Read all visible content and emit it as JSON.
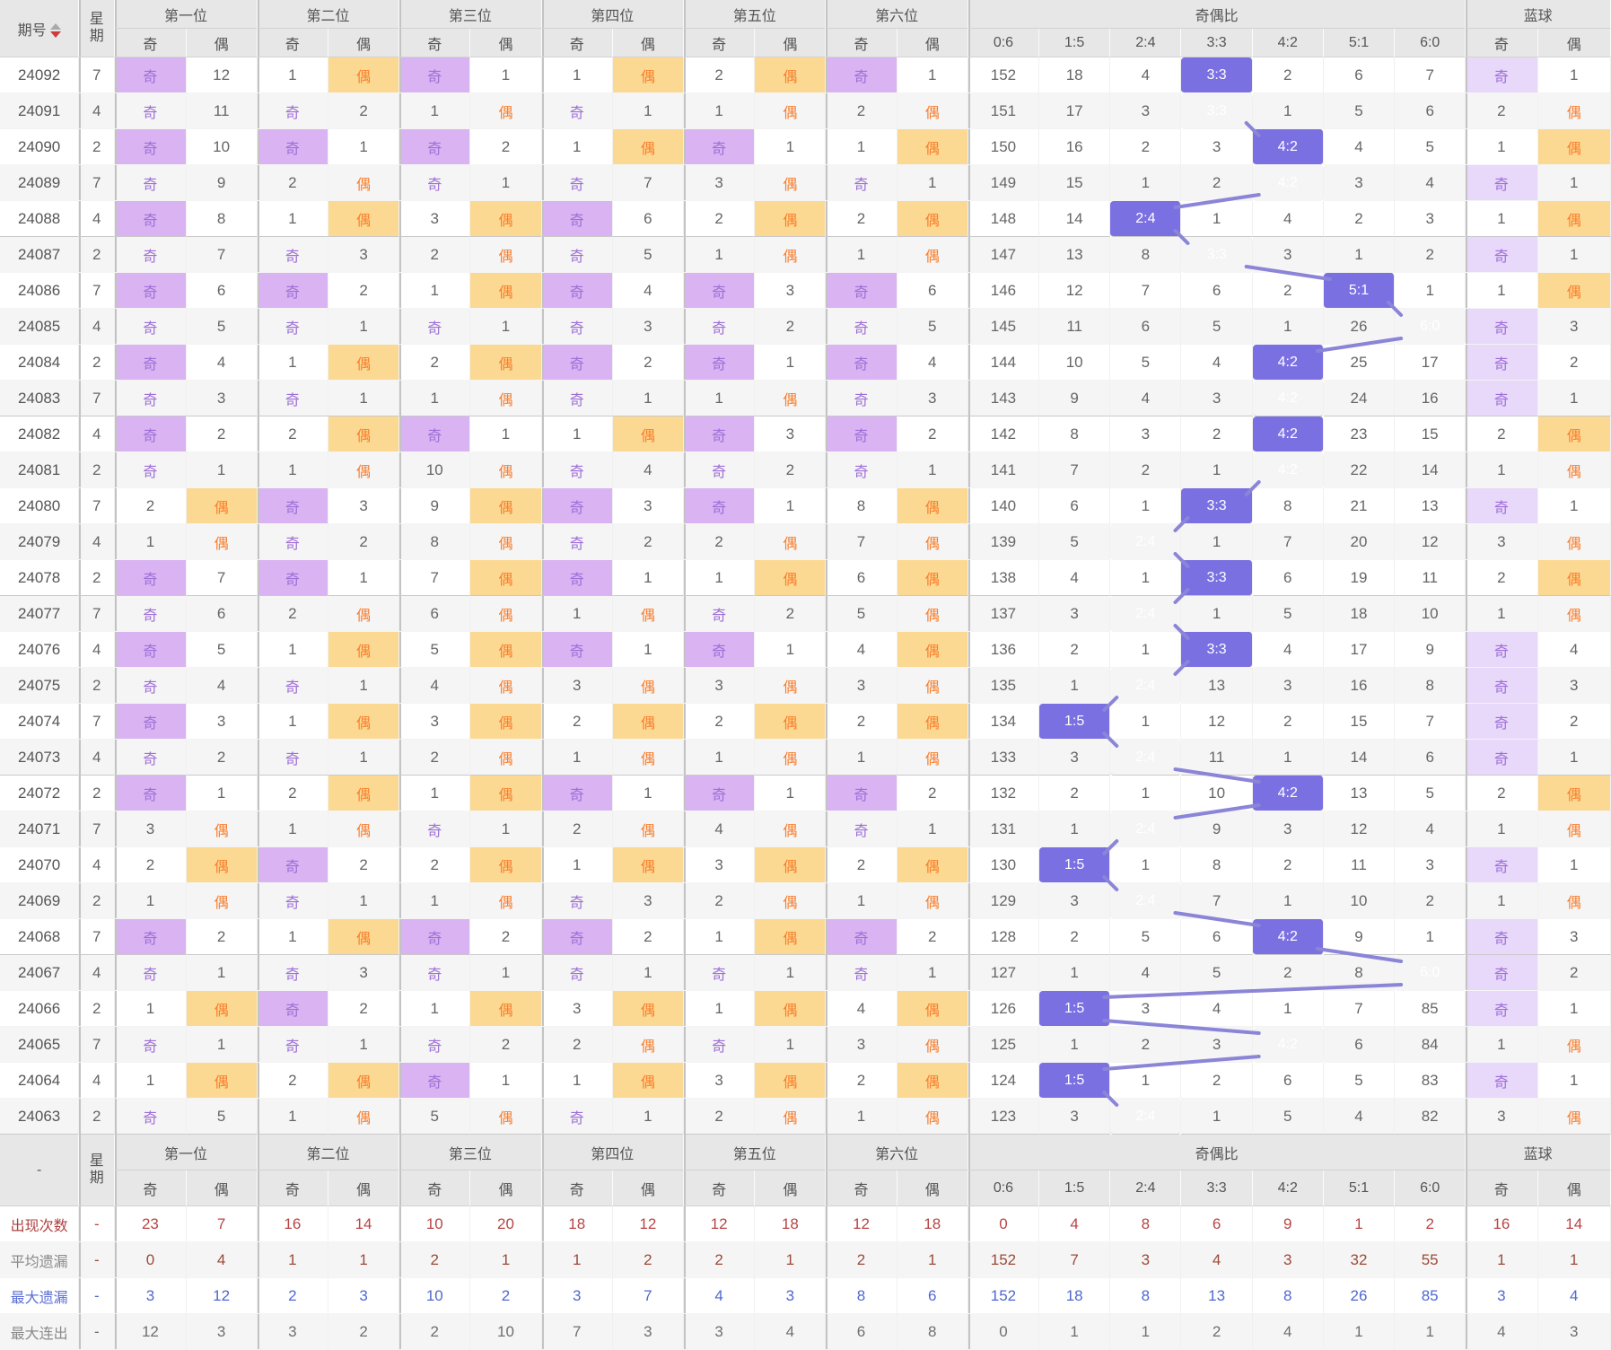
{
  "table": {
    "header": {
      "issue": "期号",
      "week_chars": [
        "星",
        "期"
      ],
      "positions": [
        "第一位",
        "第二位",
        "第三位",
        "第四位",
        "第五位",
        "第六位"
      ],
      "odd": "奇",
      "even": "偶",
      "ratio_title": "奇偶比",
      "ratio_cols": [
        "0:6",
        "1:5",
        "2:4",
        "3:3",
        "4:2",
        "5:1",
        "6:0"
      ],
      "blue_title": "蓝球",
      "summary_corner": "-"
    }
  },
  "chart_data": {
    "type": "table",
    "columns": [
      "期号",
      "星期",
      "第一位奇",
      "第一位偶",
      "第二位奇",
      "第二位偶",
      "第三位奇",
      "第三位偶",
      "第四位奇",
      "第四位偶",
      "第五位奇",
      "第五位偶",
      "第六位奇",
      "第六位偶",
      "0:6",
      "1:5",
      "2:4",
      "3:3",
      "4:2",
      "5:1",
      "6:0",
      "蓝球奇",
      "蓝球偶"
    ],
    "rows": [
      [
        "24092",
        "7",
        "奇",
        "12",
        "1",
        "偶",
        "奇",
        "1",
        "1",
        "偶",
        "2",
        "偶",
        "奇",
        "1",
        "152",
        "18",
        "4",
        "3:3",
        "2",
        "6",
        "7",
        "奇",
        "1"
      ],
      [
        "24091",
        "4",
        "奇",
        "11",
        "奇",
        "2",
        "1",
        "偶",
        "奇",
        "1",
        "1",
        "偶",
        "2",
        "偶",
        "151",
        "17",
        "3",
        "3:3",
        "1",
        "5",
        "6",
        "2",
        "偶"
      ],
      [
        "24090",
        "2",
        "奇",
        "10",
        "奇",
        "1",
        "奇",
        "2",
        "1",
        "偶",
        "奇",
        "1",
        "1",
        "偶",
        "150",
        "16",
        "2",
        "3",
        "4:2",
        "4",
        "5",
        "1",
        "偶"
      ],
      [
        "24089",
        "7",
        "奇",
        "9",
        "2",
        "偶",
        "奇",
        "1",
        "奇",
        "7",
        "3",
        "偶",
        "奇",
        "1",
        "149",
        "15",
        "1",
        "2",
        "4:2",
        "3",
        "4",
        "奇",
        "1"
      ],
      [
        "24088",
        "4",
        "奇",
        "8",
        "1",
        "偶",
        "3",
        "偶",
        "奇",
        "6",
        "2",
        "偶",
        "2",
        "偶",
        "148",
        "14",
        "2:4",
        "1",
        "4",
        "2",
        "3",
        "1",
        "偶"
      ],
      [
        "24087",
        "2",
        "奇",
        "7",
        "奇",
        "3",
        "2",
        "偶",
        "奇",
        "5",
        "1",
        "偶",
        "1",
        "偶",
        "147",
        "13",
        "8",
        "3:3",
        "3",
        "1",
        "2",
        "奇",
        "1"
      ],
      [
        "24086",
        "7",
        "奇",
        "6",
        "奇",
        "2",
        "1",
        "偶",
        "奇",
        "4",
        "奇",
        "3",
        "奇",
        "6",
        "146",
        "12",
        "7",
        "6",
        "2",
        "5:1",
        "1",
        "1",
        "偶"
      ],
      [
        "24085",
        "4",
        "奇",
        "5",
        "奇",
        "1",
        "奇",
        "1",
        "奇",
        "3",
        "奇",
        "2",
        "奇",
        "5",
        "145",
        "11",
        "6",
        "5",
        "1",
        "26",
        "6:0",
        "奇",
        "3"
      ],
      [
        "24084",
        "2",
        "奇",
        "4",
        "1",
        "偶",
        "2",
        "偶",
        "奇",
        "2",
        "奇",
        "1",
        "奇",
        "4",
        "144",
        "10",
        "5",
        "4",
        "4:2",
        "25",
        "17",
        "奇",
        "2"
      ],
      [
        "24083",
        "7",
        "奇",
        "3",
        "奇",
        "1",
        "1",
        "偶",
        "奇",
        "1",
        "1",
        "偶",
        "奇",
        "3",
        "143",
        "9",
        "4",
        "3",
        "4:2",
        "24",
        "16",
        "奇",
        "1"
      ],
      [
        "24082",
        "4",
        "奇",
        "2",
        "2",
        "偶",
        "奇",
        "1",
        "1",
        "偶",
        "奇",
        "3",
        "奇",
        "2",
        "142",
        "8",
        "3",
        "2",
        "4:2",
        "23",
        "15",
        "2",
        "偶"
      ],
      [
        "24081",
        "2",
        "奇",
        "1",
        "1",
        "偶",
        "10",
        "偶",
        "奇",
        "4",
        "奇",
        "2",
        "奇",
        "1",
        "141",
        "7",
        "2",
        "1",
        "4:2",
        "22",
        "14",
        "1",
        "偶"
      ],
      [
        "24080",
        "7",
        "2",
        "偶",
        "奇",
        "3",
        "9",
        "偶",
        "奇",
        "3",
        "奇",
        "1",
        "8",
        "偶",
        "140",
        "6",
        "1",
        "3:3",
        "8",
        "21",
        "13",
        "奇",
        "1"
      ],
      [
        "24079",
        "4",
        "1",
        "偶",
        "奇",
        "2",
        "8",
        "偶",
        "奇",
        "2",
        "2",
        "偶",
        "7",
        "偶",
        "139",
        "5",
        "2:4",
        "1",
        "7",
        "20",
        "12",
        "3",
        "偶"
      ],
      [
        "24078",
        "2",
        "奇",
        "7",
        "奇",
        "1",
        "7",
        "偶",
        "奇",
        "1",
        "1",
        "偶",
        "6",
        "偶",
        "138",
        "4",
        "1",
        "3:3",
        "6",
        "19",
        "11",
        "2",
        "偶"
      ],
      [
        "24077",
        "7",
        "奇",
        "6",
        "2",
        "偶",
        "6",
        "偶",
        "1",
        "偶",
        "奇",
        "2",
        "5",
        "偶",
        "137",
        "3",
        "2:4",
        "1",
        "5",
        "18",
        "10",
        "1",
        "偶"
      ],
      [
        "24076",
        "4",
        "奇",
        "5",
        "1",
        "偶",
        "5",
        "偶",
        "奇",
        "1",
        "奇",
        "1",
        "4",
        "偶",
        "136",
        "2",
        "1",
        "3:3",
        "4",
        "17",
        "9",
        "奇",
        "4"
      ],
      [
        "24075",
        "2",
        "奇",
        "4",
        "奇",
        "1",
        "4",
        "偶",
        "3",
        "偶",
        "3",
        "偶",
        "3",
        "偶",
        "135",
        "1",
        "2:4",
        "13",
        "3",
        "16",
        "8",
        "奇",
        "3"
      ],
      [
        "24074",
        "7",
        "奇",
        "3",
        "1",
        "偶",
        "3",
        "偶",
        "2",
        "偶",
        "2",
        "偶",
        "2",
        "偶",
        "134",
        "1:5",
        "1",
        "12",
        "2",
        "15",
        "7",
        "奇",
        "2"
      ],
      [
        "24073",
        "4",
        "奇",
        "2",
        "奇",
        "1",
        "2",
        "偶",
        "1",
        "偶",
        "1",
        "偶",
        "1",
        "偶",
        "133",
        "3",
        "2:4",
        "11",
        "1",
        "14",
        "6",
        "奇",
        "1"
      ],
      [
        "24072",
        "2",
        "奇",
        "1",
        "2",
        "偶",
        "1",
        "偶",
        "奇",
        "1",
        "奇",
        "1",
        "奇",
        "2",
        "132",
        "2",
        "1",
        "10",
        "4:2",
        "13",
        "5",
        "2",
        "偶"
      ],
      [
        "24071",
        "7",
        "3",
        "偶",
        "1",
        "偶",
        "奇",
        "1",
        "2",
        "偶",
        "4",
        "偶",
        "奇",
        "1",
        "131",
        "1",
        "2:4",
        "9",
        "3",
        "12",
        "4",
        "1",
        "偶"
      ],
      [
        "24070",
        "4",
        "2",
        "偶",
        "奇",
        "2",
        "2",
        "偶",
        "1",
        "偶",
        "3",
        "偶",
        "2",
        "偶",
        "130",
        "1:5",
        "1",
        "8",
        "2",
        "11",
        "3",
        "奇",
        "1"
      ],
      [
        "24069",
        "2",
        "1",
        "偶",
        "奇",
        "1",
        "1",
        "偶",
        "奇",
        "3",
        "2",
        "偶",
        "1",
        "偶",
        "129",
        "3",
        "2:4",
        "7",
        "1",
        "10",
        "2",
        "1",
        "偶"
      ],
      [
        "24068",
        "7",
        "奇",
        "2",
        "1",
        "偶",
        "奇",
        "2",
        "奇",
        "2",
        "1",
        "偶",
        "奇",
        "2",
        "128",
        "2",
        "5",
        "6",
        "4:2",
        "9",
        "1",
        "奇",
        "3"
      ],
      [
        "24067",
        "4",
        "奇",
        "1",
        "奇",
        "3",
        "奇",
        "1",
        "奇",
        "1",
        "奇",
        "1",
        "奇",
        "1",
        "127",
        "1",
        "4",
        "5",
        "2",
        "8",
        "6:0",
        "奇",
        "2"
      ],
      [
        "24066",
        "2",
        "1",
        "偶",
        "奇",
        "2",
        "1",
        "偶",
        "3",
        "偶",
        "1",
        "偶",
        "4",
        "偶",
        "126",
        "1:5",
        "3",
        "4",
        "1",
        "7",
        "85",
        "奇",
        "1"
      ],
      [
        "24065",
        "7",
        "奇",
        "1",
        "奇",
        "1",
        "奇",
        "2",
        "2",
        "偶",
        "奇",
        "1",
        "3",
        "偶",
        "125",
        "1",
        "2",
        "3",
        "4:2",
        "6",
        "84",
        "1",
        "偶"
      ],
      [
        "24064",
        "4",
        "1",
        "偶",
        "2",
        "偶",
        "奇",
        "1",
        "1",
        "偶",
        "3",
        "偶",
        "2",
        "偶",
        "124",
        "1:5",
        "1",
        "2",
        "6",
        "5",
        "83",
        "奇",
        "1"
      ],
      [
        "24063",
        "2",
        "奇",
        "5",
        "1",
        "偶",
        "5",
        "偶",
        "奇",
        "1",
        "2",
        "偶",
        "1",
        "偶",
        "123",
        "3",
        "2:4",
        "1",
        "5",
        "4",
        "82",
        "3",
        "偶"
      ]
    ],
    "summary_rows": [
      {
        "label": "出现次数",
        "week": "-",
        "values": [
          "23",
          "7",
          "16",
          "14",
          "10",
          "20",
          "18",
          "12",
          "12",
          "18",
          "12",
          "18",
          "0",
          "4",
          "8",
          "6",
          "9",
          "1",
          "2",
          "16",
          "14"
        ]
      },
      {
        "label": "平均遗漏",
        "week": "-",
        "values": [
          "0",
          "4",
          "1",
          "1",
          "2",
          "1",
          "1",
          "2",
          "2",
          "1",
          "2",
          "1",
          "152",
          "7",
          "3",
          "4",
          "3",
          "32",
          "55",
          "1",
          "1"
        ]
      },
      {
        "label": "最大遗漏",
        "week": "-",
        "values": [
          "3",
          "12",
          "2",
          "3",
          "10",
          "2",
          "3",
          "7",
          "4",
          "3",
          "8",
          "6",
          "152",
          "18",
          "8",
          "13",
          "8",
          "26",
          "85",
          "3",
          "4"
        ]
      },
      {
        "label": "最大连出",
        "week": "-",
        "values": [
          "12",
          "3",
          "3",
          "2",
          "2",
          "10",
          "7",
          "3",
          "3",
          "4",
          "6",
          "8",
          "0",
          "1",
          "1",
          "2",
          "4",
          "1",
          "1",
          "4",
          "3"
        ]
      }
    ]
  },
  "colors": {
    "odd_bg": "#d9b3f2",
    "odd_bg_blue": "#e8d8fa",
    "even_bg": "#fcd992",
    "odd_text": "#9f6fd8",
    "even_text": "#f87d2c",
    "ratio_highlight_bg": "#7b70e2",
    "ratio_highlight_text": "#ffffff",
    "trend_line": "#8b85d8",
    "summary_label_colors": [
      "#b04040",
      "#8a8a8a",
      "#5b6fd5",
      "#8a8a8a"
    ],
    "summary_value_colors": [
      "#b84444",
      "#9c4a38",
      "#4f68d2",
      "#6f6f6f"
    ]
  }
}
